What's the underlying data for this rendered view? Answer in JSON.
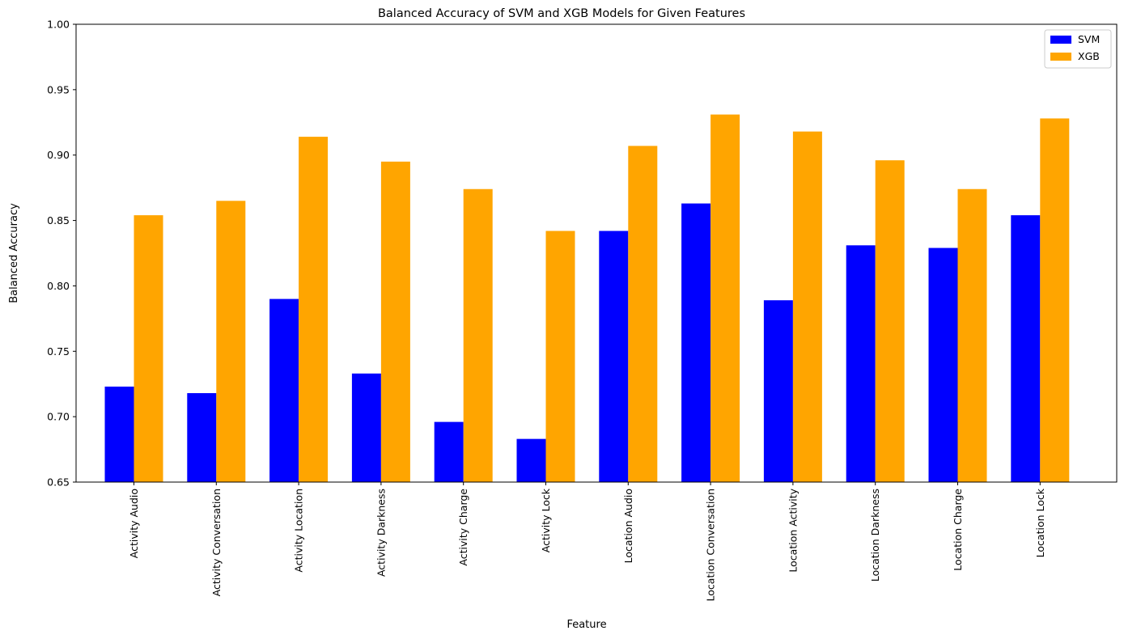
{
  "chart_data": {
    "type": "bar",
    "title": "Balanced Accuracy of SVM and XGB Models for Given Features",
    "xlabel": "Feature",
    "ylabel": "Balanced Accuracy",
    "ylim": [
      0.65,
      1.0
    ],
    "yticks": [
      "0.65",
      "0.70",
      "0.75",
      "0.80",
      "0.85",
      "0.90",
      "0.95",
      "1.00"
    ],
    "grid": false,
    "legend_position": "top-right",
    "categories": [
      "Activity Audio",
      "Activity Conversation",
      "Activity Location",
      "Activity Darkness",
      "Activity Charge",
      "Activity Lock",
      "Location Audio",
      "Location Conversation",
      "Location Activity",
      "Location Darkness",
      "Location Charge",
      "Location Lock"
    ],
    "series": [
      {
        "name": "SVM",
        "color": "#0000ff",
        "values": [
          0.723,
          0.718,
          0.79,
          0.733,
          0.696,
          0.683,
          0.842,
          0.863,
          0.789,
          0.831,
          0.829,
          0.854
        ]
      },
      {
        "name": "XGB",
        "color": "#ffa500",
        "values": [
          0.854,
          0.865,
          0.914,
          0.895,
          0.874,
          0.842,
          0.907,
          0.931,
          0.918,
          0.896,
          0.874,
          0.928
        ]
      }
    ]
  }
}
